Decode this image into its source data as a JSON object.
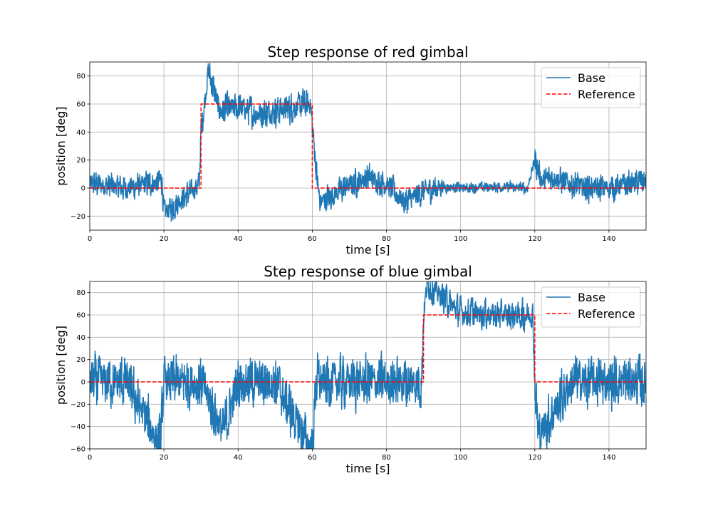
{
  "chart_data": [
    {
      "type": "line",
      "title": "Step response of red gimbal",
      "xlabel": "time [s]",
      "ylabel": "position [deg]",
      "xlim": [
        0,
        150
      ],
      "ylim": [
        -30,
        90
      ],
      "xticks": [
        "0",
        "20",
        "40",
        "60",
        "80",
        "100",
        "120",
        "140"
      ],
      "yticks": [
        "−20",
        "0",
        "20",
        "40",
        "60",
        "80"
      ],
      "grid": true,
      "legend": "top-right",
      "series": [
        {
          "name": "Base",
          "color": "#1f77b4",
          "style": "solid",
          "noise": "dense oscillation around reference",
          "x": [
            0,
            10,
            19.5,
            20,
            29.5,
            30,
            32,
            35,
            40,
            45,
            50,
            55,
            59.5,
            60,
            61,
            62,
            70,
            75,
            80,
            85,
            90,
            95,
            100,
            110,
            118,
            120,
            122,
            125,
            130,
            135,
            140,
            145,
            150
          ],
          "y": [
            3,
            0,
            5,
            -18,
            2,
            40,
            84,
            55,
            58,
            53,
            55,
            58,
            60,
            45,
            15,
            -10,
            2,
            8,
            3,
            -10,
            -2,
            1,
            0,
            1,
            0,
            20,
            5,
            8,
            2,
            0,
            0,
            3,
            5
          ]
        },
        {
          "name": "Reference",
          "color": "#ff0000",
          "style": "dashed",
          "x": [
            0,
            30,
            30,
            60,
            60,
            150
          ],
          "y": [
            0,
            0,
            60,
            60,
            0,
            0
          ]
        }
      ]
    },
    {
      "type": "line",
      "title": "Step response of blue gimbal",
      "xlabel": "time [s]",
      "ylabel": "position [deg]",
      "xlim": [
        0,
        150
      ],
      "ylim": [
        -60,
        90
      ],
      "xticks": [
        "0",
        "20",
        "40",
        "60",
        "80",
        "100",
        "120",
        "140"
      ],
      "yticks": [
        "−60",
        "−40",
        "−20",
        "0",
        "20",
        "40",
        "60",
        "80"
      ],
      "grid": true,
      "legend": "top-right",
      "series": [
        {
          "name": "Base",
          "color": "#1f77b4",
          "style": "solid",
          "noise": "dense oscillation around reference",
          "x": [
            0,
            10,
            19,
            20,
            30,
            36,
            40,
            50,
            60,
            61,
            70,
            80,
            89.5,
            90,
            91,
            100,
            110,
            119.5,
            120,
            121,
            130,
            140,
            145,
            150
          ],
          "y": [
            0,
            0,
            -58,
            0,
            0,
            -45,
            0,
            0,
            -62,
            0,
            0,
            0,
            0,
            60,
            88,
            62,
            60,
            60,
            0,
            -48,
            0,
            0,
            0,
            0
          ]
        },
        {
          "name": "Reference",
          "color": "#ff0000",
          "style": "dashed",
          "x": [
            0,
            90,
            90,
            120,
            120,
            150
          ],
          "y": [
            0,
            0,
            60,
            60,
            0,
            0
          ]
        }
      ]
    }
  ]
}
